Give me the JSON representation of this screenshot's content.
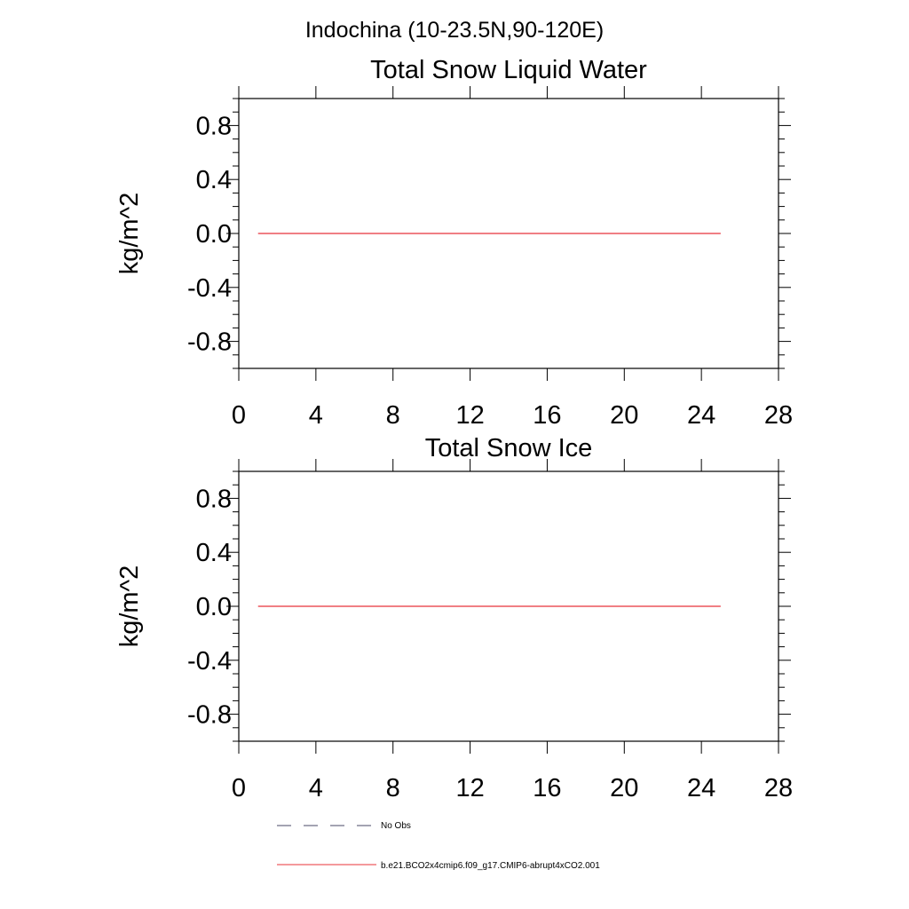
{
  "figure": {
    "suptitle": "Indochina (10-23.5N,90-120E)"
  },
  "chart_data": [
    {
      "type": "line",
      "title": "Total Snow Liquid Water",
      "xlabel": "",
      "ylabel": "kg/m^2",
      "xlim": [
        0,
        28
      ],
      "ylim": [
        -1,
        1
      ],
      "x_ticks": [
        0,
        4,
        8,
        12,
        16,
        20,
        24,
        28
      ],
      "x_tick_labels": [
        "0",
        "4",
        "8",
        "12",
        "16",
        "20",
        "24",
        "28"
      ],
      "y_ticks": [
        0.8,
        0.4,
        0.0,
        -0.4,
        -0.8
      ],
      "y_tick_labels": [
        "0.8",
        "0.4",
        "0.0",
        "-0.4",
        "-0.8"
      ],
      "grid": false,
      "series": [
        {
          "name": "b.e21.BCO2x4cmip6.f09_g17.CMIP6-abrupt4xCO2.001",
          "color": "#e8333a",
          "x": [
            1,
            25
          ],
          "y": [
            0.0,
            0.0
          ]
        }
      ]
    },
    {
      "type": "line",
      "title": "Total Snow Ice",
      "xlabel": "",
      "ylabel": "kg/m^2",
      "xlim": [
        0,
        28
      ],
      "ylim": [
        -1,
        1
      ],
      "x_ticks": [
        0,
        4,
        8,
        12,
        16,
        20,
        24,
        28
      ],
      "x_tick_labels": [
        "0",
        "4",
        "8",
        "12",
        "16",
        "20",
        "24",
        "28"
      ],
      "y_ticks": [
        0.8,
        0.4,
        0.0,
        -0.4,
        -0.8
      ],
      "y_tick_labels": [
        "0.8",
        "0.4",
        "0.0",
        "-0.4",
        "-0.8"
      ],
      "grid": false,
      "series": [
        {
          "name": "b.e21.BCO2x4cmip6.f09_g17.CMIP6-abrupt4xCO2.001",
          "color": "#e8333a",
          "x": [
            1,
            25
          ],
          "y": [
            0.0,
            0.0
          ]
        }
      ]
    }
  ],
  "legend": {
    "placement": "bottom-left",
    "entries": [
      {
        "label": "No Obs",
        "style": "dashed",
        "color": "#4a4a66"
      },
      {
        "label": "b.e21.BCO2x4cmip6.f09_g17.CMIP6-abrupt4xCO2.001",
        "style": "solid",
        "color": "#e8333a"
      }
    ]
  }
}
